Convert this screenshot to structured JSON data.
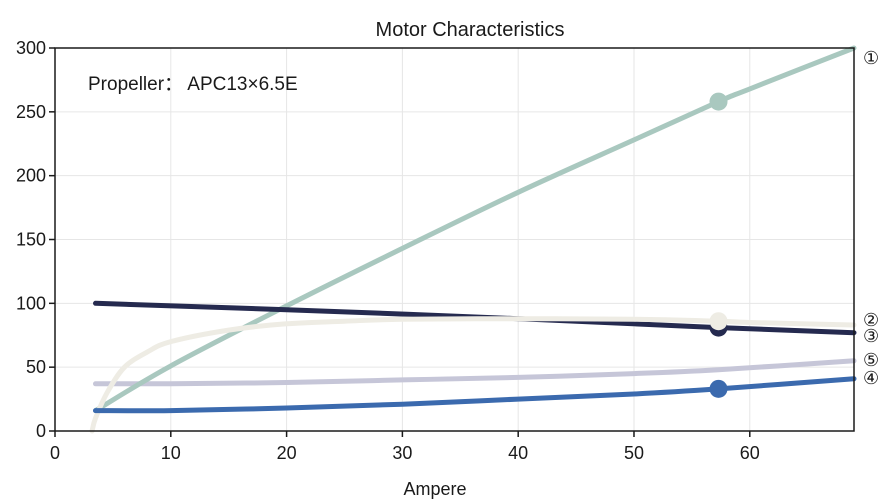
{
  "chart_data": {
    "type": "line",
    "title": "Motor Characteristics",
    "xlabel": "Ampere",
    "ylabel": "",
    "xlim": [
      0,
      69
    ],
    "ylim": [
      0,
      300
    ],
    "x_ticks": [
      0,
      10,
      20,
      30,
      40,
      50,
      60
    ],
    "y_ticks": [
      0,
      50,
      100,
      150,
      200,
      250,
      300
    ],
    "grid": true,
    "annotation": "Propeller： APC13×6.5E",
    "series": [
      {
        "name": "①",
        "color": "#a9c8bf",
        "points": [
          [
            3.5,
            16
          ],
          [
            10,
            51
          ],
          [
            20,
            98
          ],
          [
            30,
            143
          ],
          [
            40,
            187
          ],
          [
            50,
            228
          ],
          [
            57.3,
            258
          ],
          [
            60,
            268
          ],
          [
            69,
            300
          ]
        ],
        "marker": [
          57.3,
          258
        ]
      },
      {
        "name": "②",
        "color": "#eeece4",
        "points": [
          [
            3.2,
            0
          ],
          [
            3.5,
            10
          ],
          [
            4.5,
            30
          ],
          [
            6,
            50
          ],
          [
            8,
            62
          ],
          [
            10,
            70
          ],
          [
            15,
            79
          ],
          [
            20,
            84
          ],
          [
            25,
            86
          ],
          [
            30,
            87.5
          ],
          [
            40,
            88
          ],
          [
            50,
            87.5
          ],
          [
            57.3,
            86
          ],
          [
            60,
            85
          ],
          [
            69,
            83
          ]
        ],
        "marker": [
          57.3,
          86
        ]
      },
      {
        "name": "③",
        "color": "#252a4f",
        "points": [
          [
            3.5,
            100
          ],
          [
            20,
            95
          ],
          [
            40,
            88
          ],
          [
            57.3,
            81
          ],
          [
            69,
            77
          ]
        ],
        "marker": [
          57.3,
          81
        ]
      },
      {
        "name": "④",
        "color": "#3b6aae",
        "points": [
          [
            3.5,
            16
          ],
          [
            10,
            16
          ],
          [
            20,
            18
          ],
          [
            30,
            21
          ],
          [
            40,
            25
          ],
          [
            50,
            29
          ],
          [
            57.3,
            33
          ],
          [
            69,
            41
          ]
        ],
        "marker": [
          57.3,
          33
        ]
      },
      {
        "name": "⑤",
        "color": "#c6c6d8",
        "points": [
          [
            3.5,
            37
          ],
          [
            10,
            37
          ],
          [
            20,
            38
          ],
          [
            30,
            40
          ],
          [
            40,
            42
          ],
          [
            50,
            45
          ],
          [
            57.3,
            48
          ],
          [
            69,
            55
          ]
        ],
        "marker": null
      }
    ]
  }
}
